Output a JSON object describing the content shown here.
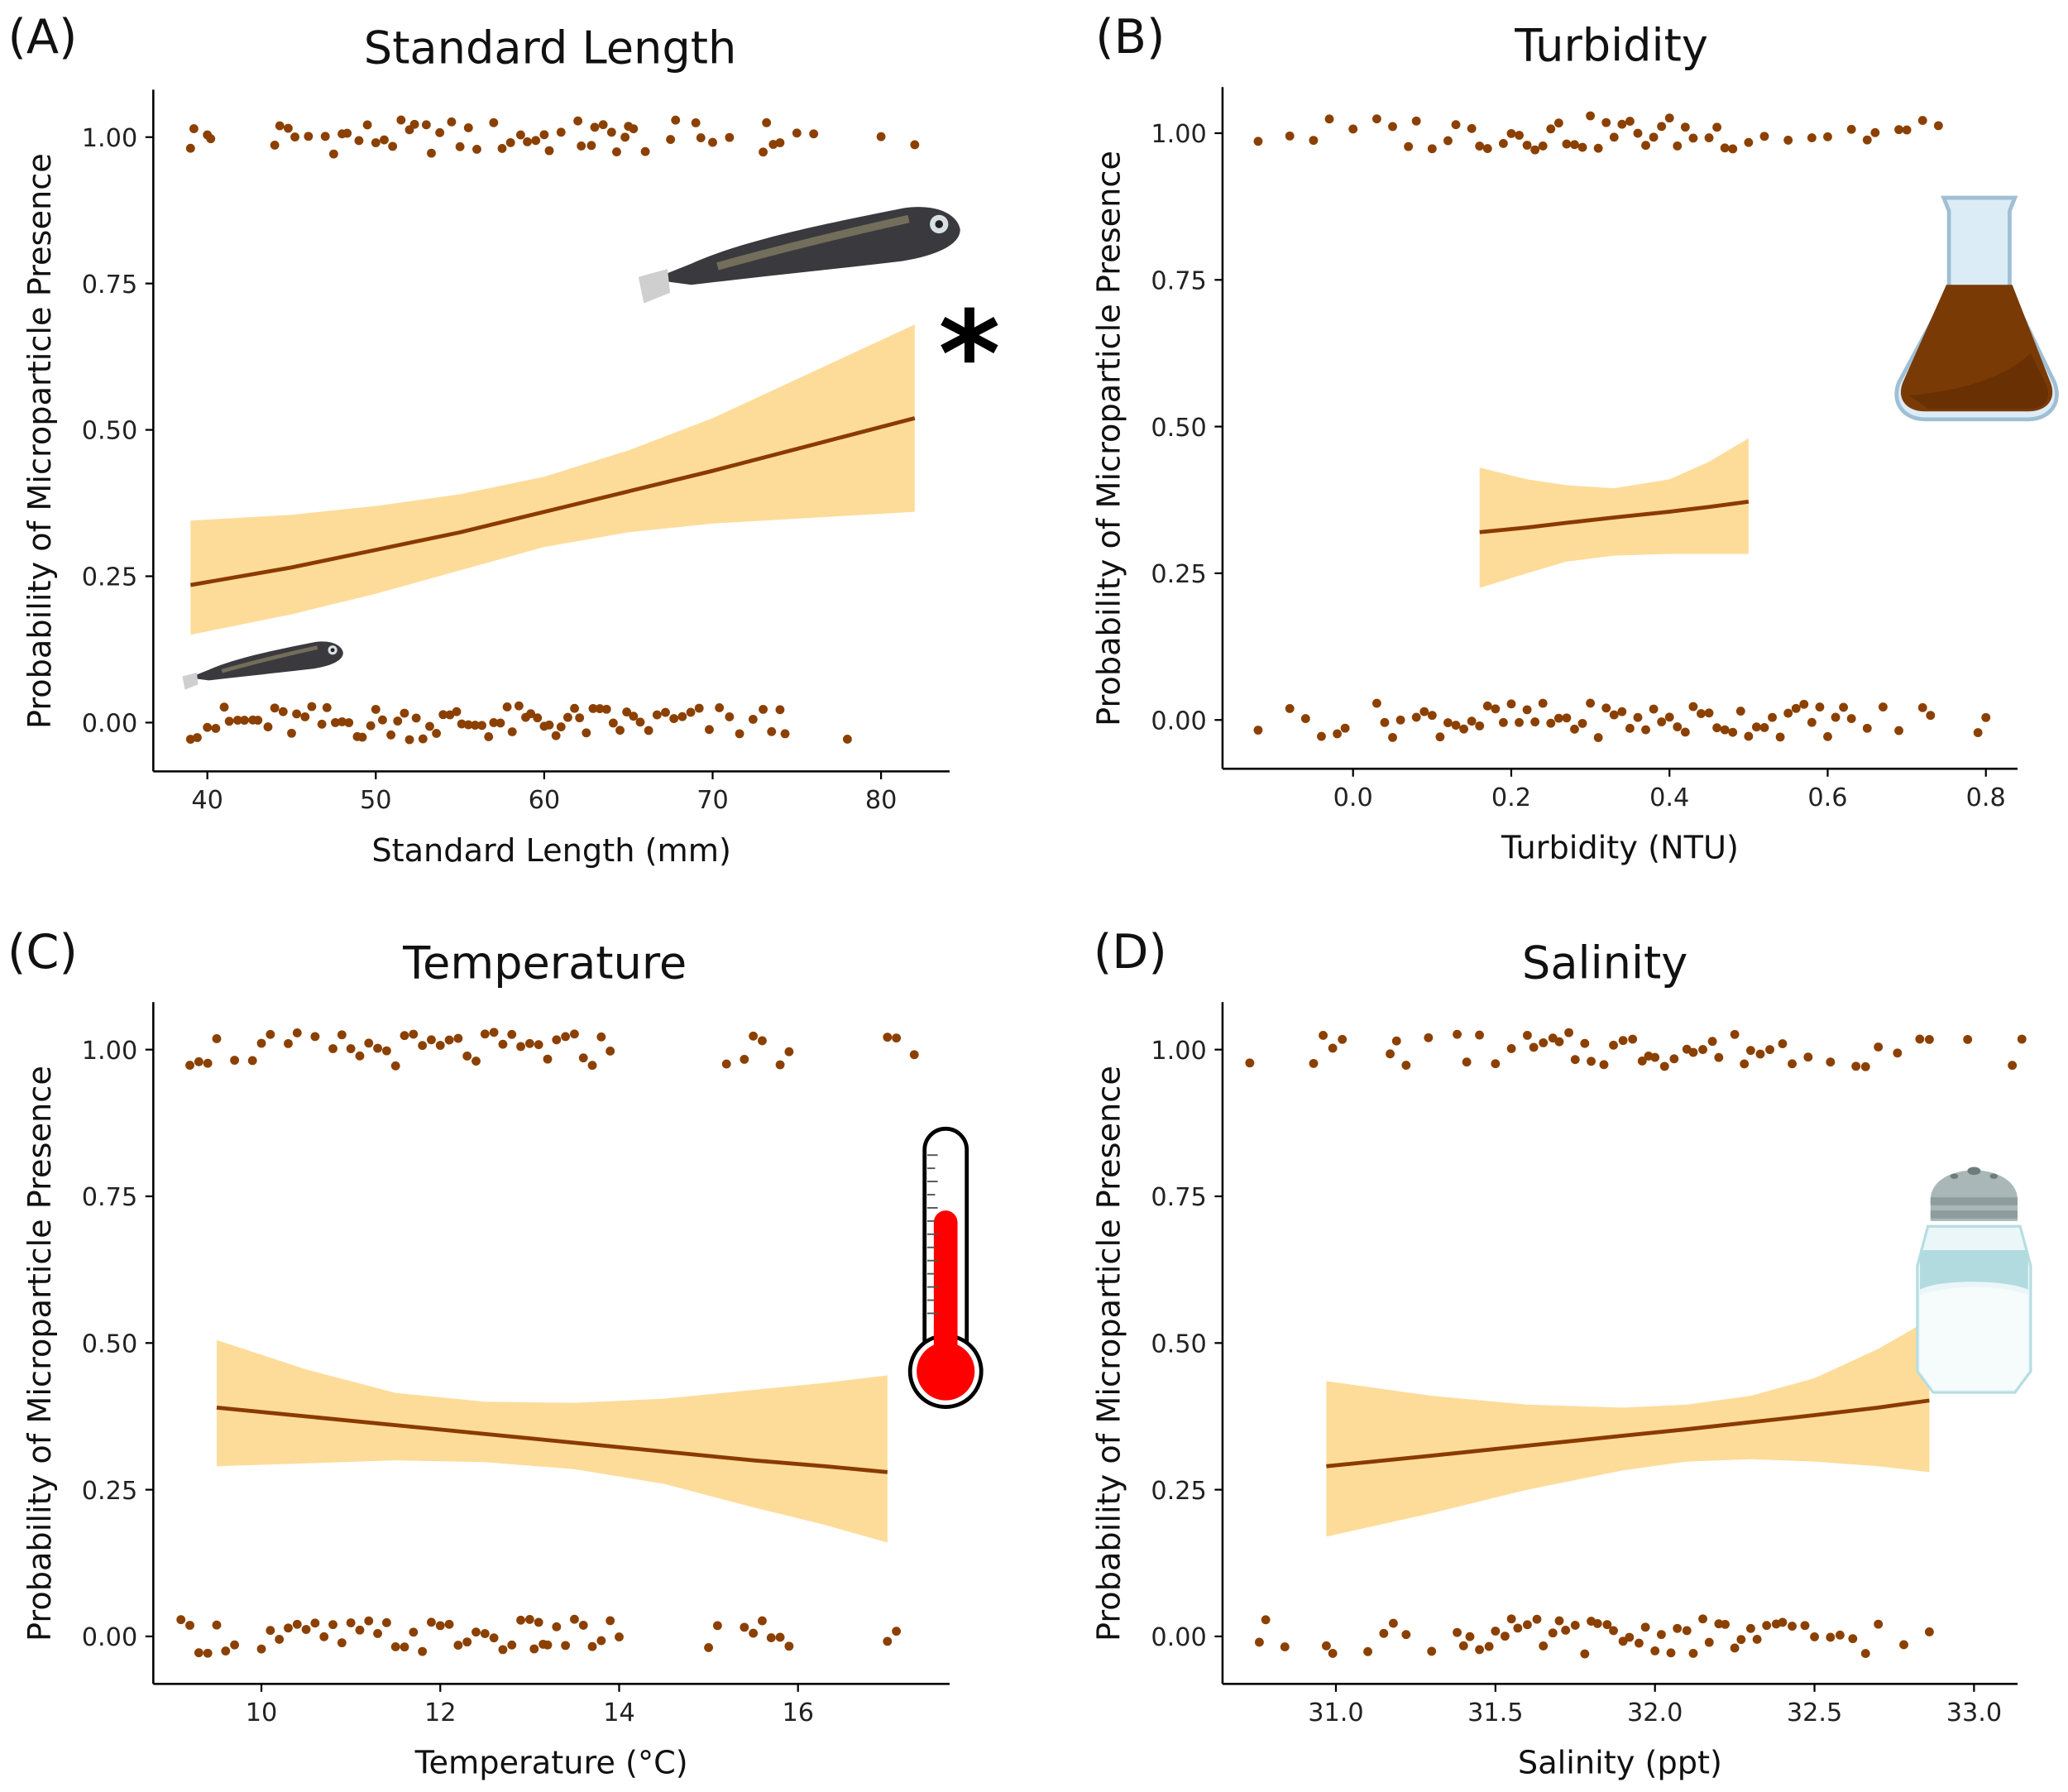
{
  "colors": {
    "point": "#8B4000",
    "line": "#8B3A00",
    "band": "#FDDC9A",
    "axis": "#000000"
  },
  "chart_data": [
    {
      "type": "scatter",
      "panel": "(A)",
      "title": "Standard Length",
      "xlabel": "Standard Length (mm)",
      "ylabel": "Probability of Microparticle Presence",
      "xticks": [
        "40",
        "50",
        "60",
        "70",
        "80"
      ],
      "xtick_values": [
        40,
        50,
        60,
        70,
        80
      ],
      "yticks": [
        "0.00",
        "0.25",
        "0.50",
        "0.75",
        "1.00"
      ],
      "ytick_values": [
        0,
        0.25,
        0.5,
        0.75,
        1
      ],
      "xlim": [
        36.8,
        84.2
      ],
      "ylim": [
        -0.07,
        1.08
      ],
      "annotation": "*",
      "fit": {
        "x": [
          39,
          45,
          50,
          55,
          60,
          65,
          70,
          76,
          82
        ],
        "y": [
          0.235,
          0.265,
          0.295,
          0.325,
          0.36,
          0.395,
          0.43,
          0.475,
          0.52
        ],
        "lower": [
          0.15,
          0.185,
          0.22,
          0.26,
          0.3,
          0.325,
          0.34,
          0.35,
          0.36
        ],
        "upper": [
          0.345,
          0.355,
          0.37,
          0.39,
          0.42,
          0.465,
          0.52,
          0.6,
          0.68
        ]
      },
      "presence_x": [
        39,
        39.2,
        40,
        40.2,
        44,
        44.3,
        44.8,
        45.2,
        46,
        47,
        47.5,
        48,
        48.3,
        49,
        49.5,
        50,
        50.5,
        51,
        51.5,
        52,
        52.3,
        53,
        53.3,
        53.8,
        54.5,
        55,
        55.5,
        56,
        57,
        57.5,
        58,
        58.6,
        59,
        59.5,
        60,
        60.3,
        61,
        62,
        62.2,
        62.8,
        63,
        63.5,
        64,
        64.3,
        64.8,
        65,
        65.3,
        66,
        67.5,
        67.8,
        69,
        69.3,
        70,
        71,
        73,
        73.2,
        73.6,
        74,
        75,
        76,
        80,
        82
      ],
      "absence_x": [
        39,
        39.4,
        40,
        40.5,
        41,
        41.3,
        41.8,
        42.2,
        42.7,
        43,
        43.6,
        44,
        44.5,
        45,
        45.3,
        45.8,
        46.2,
        46.8,
        47.1,
        47.6,
        48,
        48.4,
        48.9,
        49.2,
        49.7,
        50,
        50.4,
        50.9,
        51.3,
        51.7,
        52,
        52.4,
        52.8,
        53.2,
        53.6,
        54,
        54.4,
        54.8,
        55.1,
        55.5,
        55.9,
        56.3,
        56.7,
        57,
        57.4,
        57.8,
        58.1,
        58.5,
        58.9,
        59.2,
        59.6,
        60,
        60.3,
        60.7,
        61,
        61.4,
        61.8,
        62.1,
        62.5,
        62.9,
        63.3,
        63.7,
        64.1,
        64.5,
        64.9,
        65.3,
        65.7,
        66.2,
        66.7,
        67.2,
        67.7,
        68.2,
        68.7,
        69.2,
        69.8,
        70.4,
        71,
        71.6,
        72.4,
        73,
        73.5,
        74,
        74.3,
        78
      ]
    },
    {
      "type": "scatter",
      "panel": "(B)",
      "title": "Turbidity",
      "xlabel": "Turbidity (NTU)",
      "ylabel": "Probability of Microparticle Presence",
      "xticks": [
        "0.0",
        "0.2",
        "0.4",
        "0.6",
        "0.8"
      ],
      "xtick_values": [
        0,
        0.2,
        0.4,
        0.6,
        0.8
      ],
      "yticks": [
        "0.00",
        "0.25",
        "0.50",
        "0.75",
        "1.00"
      ],
      "ytick_values": [
        0,
        0.25,
        0.5,
        0.75,
        1
      ],
      "xlim": [
        -0.165,
        0.84
      ],
      "ylim": [
        -0.07,
        1.08
      ],
      "fit": {
        "x": [
          0.16,
          0.22,
          0.27,
          0.33,
          0.4,
          0.45,
          0.5
        ],
        "y": [
          0.32,
          0.328,
          0.336,
          0.345,
          0.355,
          0.363,
          0.372
        ],
        "lower": [
          0.225,
          0.25,
          0.27,
          0.28,
          0.283,
          0.283,
          0.283
        ],
        "upper": [
          0.43,
          0.41,
          0.4,
          0.395,
          0.41,
          0.44,
          0.48
        ]
      },
      "presence_x": [
        -0.12,
        -0.08,
        -0.05,
        -0.03,
        0.0,
        0.03,
        0.05,
        0.07,
        0.08,
        0.1,
        0.12,
        0.13,
        0.15,
        0.16,
        0.17,
        0.19,
        0.2,
        0.21,
        0.22,
        0.23,
        0.24,
        0.25,
        0.26,
        0.27,
        0.28,
        0.29,
        0.3,
        0.31,
        0.32,
        0.33,
        0.34,
        0.35,
        0.36,
        0.37,
        0.38,
        0.39,
        0.4,
        0.41,
        0.42,
        0.43,
        0.45,
        0.46,
        0.47,
        0.48,
        0.5,
        0.52,
        0.55,
        0.58,
        0.6,
        0.63,
        0.65,
        0.66,
        0.69,
        0.7,
        0.72,
        0.74
      ],
      "absence_x": [
        -0.12,
        -0.08,
        -0.06,
        -0.04,
        -0.02,
        -0.01,
        0.03,
        0.04,
        0.05,
        0.06,
        0.08,
        0.09,
        0.1,
        0.11,
        0.12,
        0.13,
        0.14,
        0.15,
        0.16,
        0.17,
        0.18,
        0.19,
        0.2,
        0.21,
        0.22,
        0.23,
        0.24,
        0.25,
        0.26,
        0.27,
        0.28,
        0.29,
        0.3,
        0.31,
        0.32,
        0.33,
        0.34,
        0.35,
        0.36,
        0.37,
        0.38,
        0.39,
        0.4,
        0.41,
        0.42,
        0.43,
        0.44,
        0.45,
        0.46,
        0.47,
        0.48,
        0.49,
        0.5,
        0.51,
        0.52,
        0.53,
        0.54,
        0.55,
        0.56,
        0.57,
        0.58,
        0.59,
        0.6,
        0.61,
        0.62,
        0.63,
        0.65,
        0.67,
        0.69,
        0.72,
        0.73,
        0.79,
        0.8
      ]
    },
    {
      "type": "scatter",
      "panel": "(C)",
      "title": "Temperature",
      "xlabel": "Temperature (°C)",
      "ylabel": "Probability of Microparticle Presence",
      "xticks": [
        "10",
        "12",
        "14",
        "16"
      ],
      "xtick_values": [
        10,
        12,
        14,
        16
      ],
      "yticks": [
        "0.00",
        "0.25",
        "0.50",
        "0.75",
        "1.00"
      ],
      "ytick_values": [
        0,
        0.25,
        0.5,
        0.75,
        1
      ],
      "xlim": [
        8.79,
        17.7
      ],
      "ylim": [
        -0.07,
        1.08
      ],
      "fit": {
        "x": [
          9.5,
          10.5,
          11.5,
          12.5,
          13.5,
          14.5,
          15.5,
          16.3,
          17
        ],
        "y": [
          0.39,
          0.375,
          0.36,
          0.345,
          0.33,
          0.315,
          0.3,
          0.29,
          0.28
        ],
        "lower": [
          0.29,
          0.295,
          0.3,
          0.297,
          0.285,
          0.26,
          0.22,
          0.19,
          0.16
        ],
        "upper": [
          0.505,
          0.455,
          0.415,
          0.4,
          0.398,
          0.405,
          0.42,
          0.432,
          0.445
        ]
      },
      "presence_x": [
        9.2,
        9.3,
        9.4,
        9.5,
        9.7,
        9.9,
        10,
        10.1,
        10.3,
        10.4,
        10.6,
        10.8,
        10.9,
        11,
        11.1,
        11.2,
        11.3,
        11.4,
        11.5,
        11.6,
        11.7,
        11.8,
        11.9,
        12,
        12.1,
        12.2,
        12.3,
        12.4,
        12.5,
        12.6,
        12.7,
        12.8,
        12.9,
        13,
        13.1,
        13.2,
        13.3,
        13.4,
        13.5,
        13.6,
        13.7,
        13.8,
        13.9,
        15.2,
        15.4,
        15.5,
        15.6,
        15.8,
        15.9,
        17,
        17.1,
        17.3
      ],
      "absence_x": [
        9.1,
        9.2,
        9.3,
        9.4,
        9.5,
        9.6,
        9.7,
        10,
        10.1,
        10.2,
        10.3,
        10.4,
        10.5,
        10.6,
        10.7,
        10.8,
        10.9,
        11,
        11.1,
        11.2,
        11.3,
        11.4,
        11.5,
        11.6,
        11.7,
        11.8,
        11.9,
        12,
        12.1,
        12.2,
        12.3,
        12.4,
        12.5,
        12.6,
        12.7,
        12.8,
        12.9,
        13,
        13.05,
        13.1,
        13.15,
        13.2,
        13.3,
        13.4,
        13.5,
        13.6,
        13.7,
        13.8,
        13.9,
        14,
        15,
        15.1,
        15.4,
        15.5,
        15.6,
        15.7,
        15.8,
        15.9,
        17,
        17.1
      ]
    },
    {
      "type": "scatter",
      "panel": "(D)",
      "title": "Salinity",
      "xlabel": "Salinity (ppt)",
      "ylabel": "Probability of Microparticle Presence",
      "xticks": [
        "31.0",
        "31.5",
        "32.0",
        "32.5",
        "33.0"
      ],
      "xtick_values": [
        31,
        31.5,
        32,
        32.5,
        33
      ],
      "yticks": [
        "0.00",
        "0.25",
        "0.50",
        "0.75",
        "1.00"
      ],
      "ytick_values": [
        0,
        0.25,
        0.5,
        0.75,
        1
      ],
      "xlim": [
        30.64,
        33.13
      ],
      "ylim": [
        -0.07,
        1.08
      ],
      "fit": {
        "x": [
          30.97,
          31.3,
          31.6,
          31.9,
          32.1,
          32.3,
          32.5,
          32.7,
          32.86
        ],
        "y": [
          0.29,
          0.308,
          0.325,
          0.342,
          0.353,
          0.365,
          0.377,
          0.39,
          0.402
        ],
        "lower": [
          0.17,
          0.21,
          0.25,
          0.283,
          0.298,
          0.302,
          0.298,
          0.29,
          0.28
        ],
        "upper": [
          0.435,
          0.41,
          0.395,
          0.39,
          0.395,
          0.41,
          0.44,
          0.49,
          0.54
        ],
        "note": "x range 30.97–32.86"
      },
      "presence_x": [
        30.73,
        30.93,
        30.96,
        30.99,
        31.02,
        31.17,
        31.19,
        31.22,
        31.29,
        31.38,
        31.41,
        31.45,
        31.5,
        31.55,
        31.6,
        31.62,
        31.65,
        31.68,
        31.7,
        31.73,
        31.75,
        31.78,
        31.8,
        31.84,
        31.87,
        31.9,
        31.93,
        31.96,
        31.98,
        32.0,
        32.03,
        32.06,
        32.1,
        32.12,
        32.15,
        32.18,
        32.2,
        32.25,
        32.28,
        32.3,
        32.33,
        32.36,
        32.4,
        32.43,
        32.48,
        32.55,
        32.63,
        32.66,
        32.7,
        32.76,
        32.83,
        32.86,
        32.98,
        33.12,
        33.15
      ],
      "absence_x": [
        30.76,
        30.78,
        30.84,
        30.97,
        30.99,
        31.1,
        31.15,
        31.18,
        31.22,
        31.3,
        31.38,
        31.4,
        31.42,
        31.45,
        31.48,
        31.5,
        31.53,
        31.55,
        31.57,
        31.6,
        31.63,
        31.65,
        31.68,
        31.7,
        31.72,
        31.75,
        31.78,
        31.8,
        31.82,
        31.85,
        31.87,
        31.9,
        31.92,
        31.95,
        31.97,
        32.0,
        32.02,
        32.05,
        32.07,
        32.1,
        32.12,
        32.15,
        32.17,
        32.2,
        32.22,
        32.25,
        32.27,
        32.3,
        32.32,
        32.35,
        32.38,
        32.4,
        32.43,
        32.47,
        32.5,
        32.55,
        32.58,
        32.62,
        32.66,
        32.7,
        32.78,
        32.86
      ]
    }
  ]
}
